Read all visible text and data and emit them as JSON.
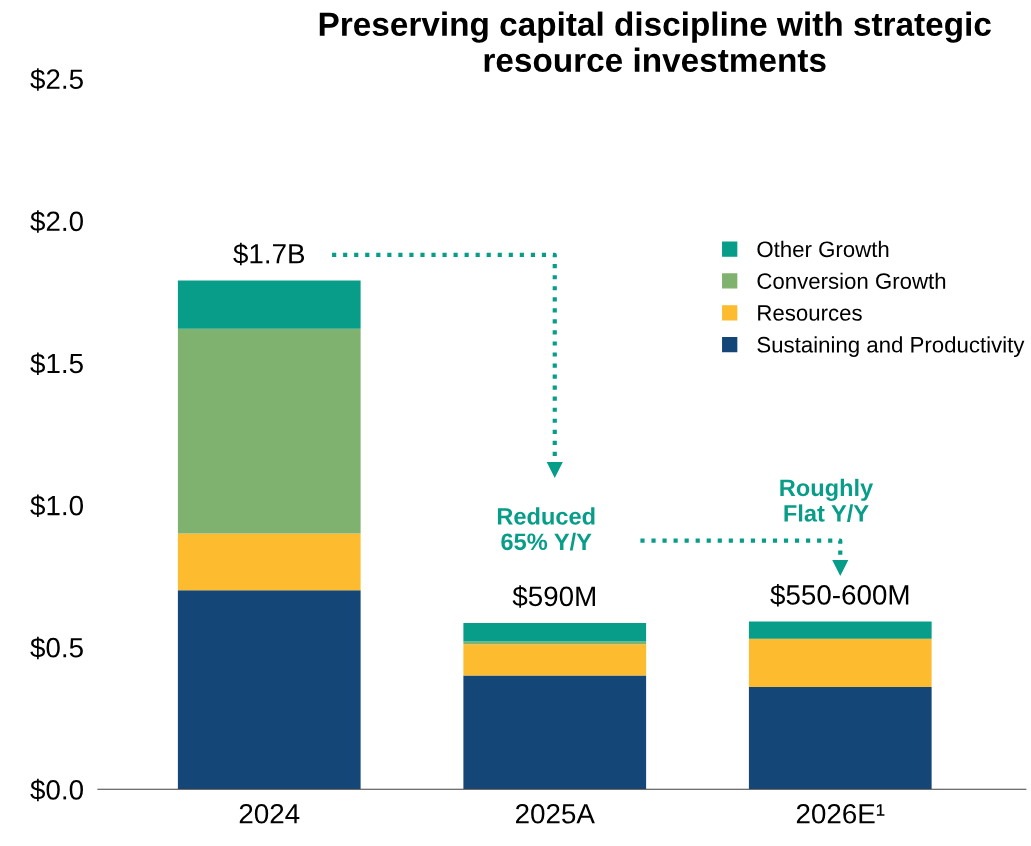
{
  "chart_data": {
    "type": "bar",
    "title": "Preserving capital discipline with strategic resource investments",
    "categories": [
      "2024",
      "2025A",
      "2026E¹"
    ],
    "stacked": true,
    "series": [
      {
        "name": "Sustaining and Productivity",
        "color": "#144677",
        "values": [
          0.7,
          0.4,
          0.36
        ]
      },
      {
        "name": "Resources",
        "color": "#fdbb30",
        "values": [
          0.2,
          0.11,
          0.17
        ]
      },
      {
        "name": "Conversion Growth",
        "color": "#80b26f",
        "values": [
          0.72,
          0.01,
          0.0
        ]
      },
      {
        "name": "Other Growth",
        "color": "#079d88",
        "values": [
          0.17,
          0.065,
          0.06
        ]
      }
    ],
    "annotations": [
      {
        "text": "$1.7B",
        "x": "2024",
        "y": 1.79
      },
      {
        "text": "$590M",
        "x": "2025A",
        "y": 0.585
      },
      {
        "text": "$550-600M",
        "x": "2026E¹",
        "y": 0.59
      },
      "Reduced\n65% Y/Y",
      "Roughly\nFlat Y/Y"
    ],
    "ylim": [
      0,
      2.5
    ],
    "yticks": [
      {
        "value": 0,
        "label": "$0.0"
      },
      {
        "value": 0.5,
        "label": "$0.5"
      },
      {
        "value": 1.0,
        "label": "$1.0"
      },
      {
        "value": 1.5,
        "label": "$1.5"
      },
      {
        "value": 2.0,
        "label": "$2.0"
      },
      {
        "value": 2.5,
        "label": "$2.5"
      }
    ],
    "grid": false,
    "legend": "top right"
  }
}
